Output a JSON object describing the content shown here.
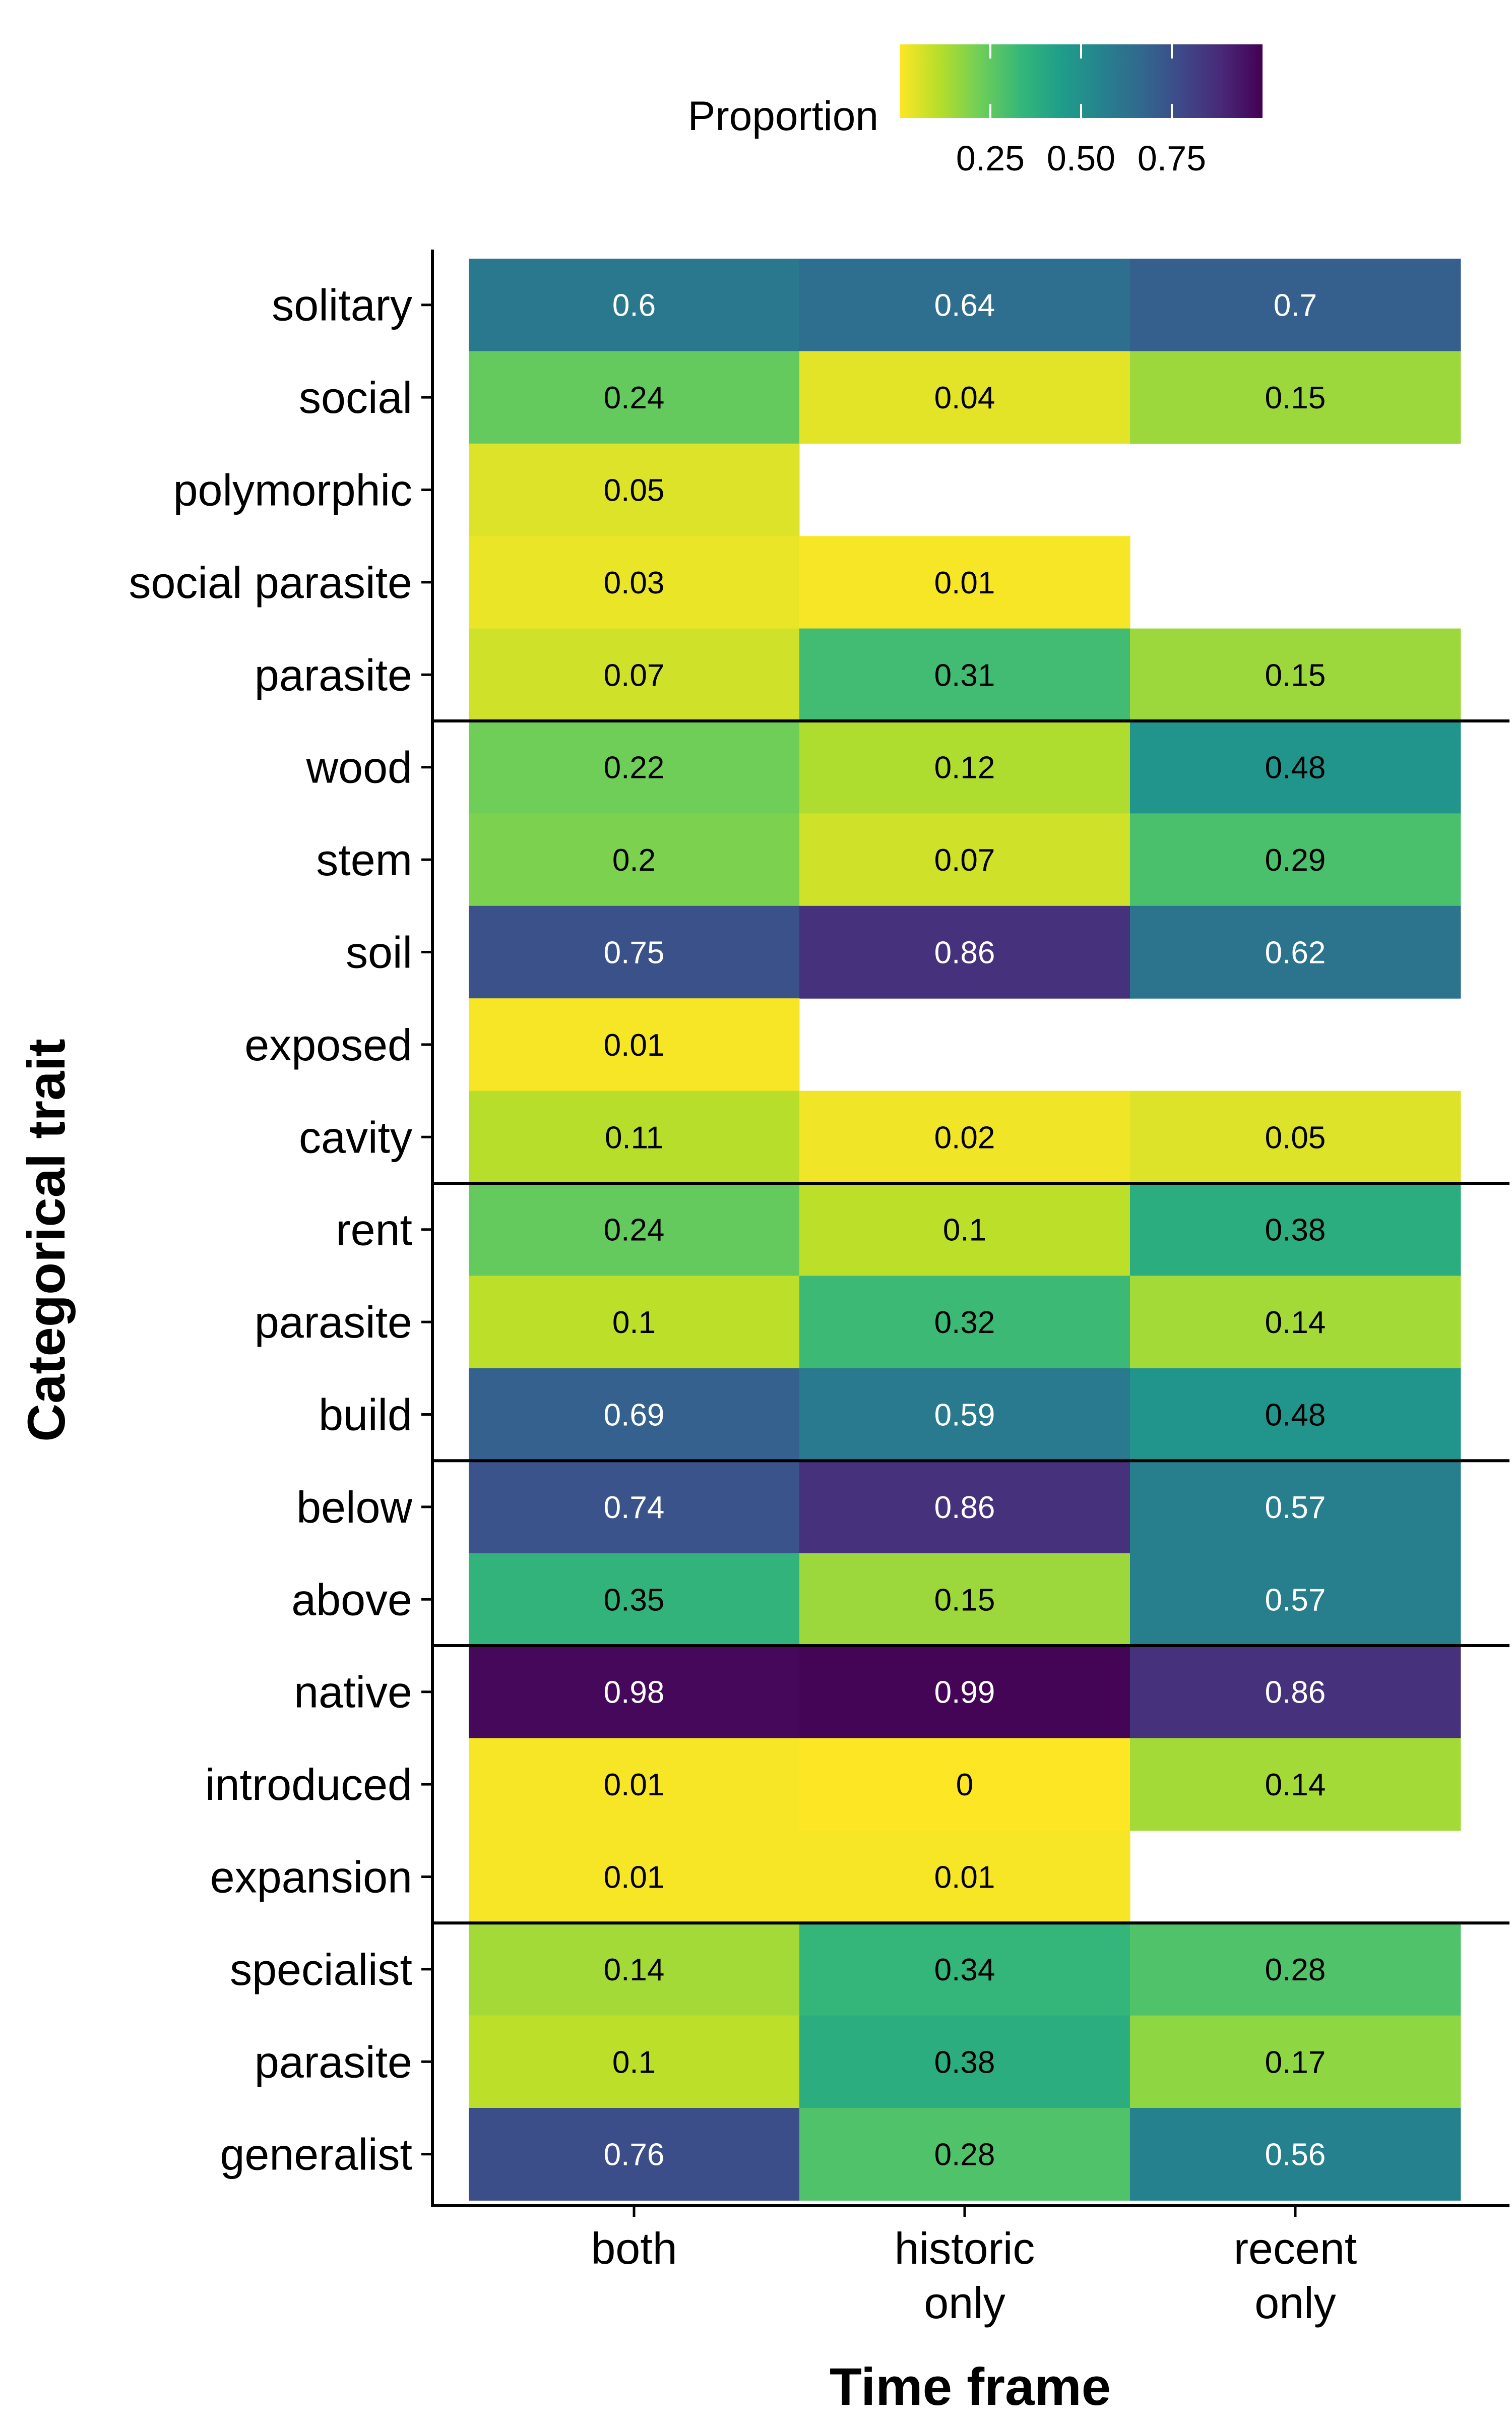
{
  "chart_data": {
    "type": "heatmap",
    "title": "",
    "xlabel": "Time frame",
    "ylabel": "Categorical trait",
    "x_categories": [
      [
        "both"
      ],
      [
        "historic",
        "only"
      ],
      [
        "recent",
        "only"
      ]
    ],
    "y_categories": [
      "solitary",
      "social",
      "polymorphic",
      "social parasite",
      "parasite",
      "wood",
      "stem",
      "soil",
      "exposed",
      "cavity",
      "rent",
      "parasite",
      "build",
      "below",
      "above",
      "native",
      "introduced",
      "expansion",
      "specialist",
      "parasite",
      "generalist"
    ],
    "values": [
      [
        0.6,
        0.64,
        0.7
      ],
      [
        0.24,
        0.04,
        0.15
      ],
      [
        0.05,
        null,
        null
      ],
      [
        0.03,
        0.01,
        null
      ],
      [
        0.07,
        0.31,
        0.15
      ],
      [
        0.22,
        0.12,
        0.48
      ],
      [
        0.2,
        0.07,
        0.29
      ],
      [
        0.75,
        0.86,
        0.62
      ],
      [
        0.01,
        null,
        null
      ],
      [
        0.11,
        0.02,
        0.05
      ],
      [
        0.24,
        0.1,
        0.38
      ],
      [
        0.1,
        0.32,
        0.14
      ],
      [
        0.69,
        0.59,
        0.48
      ],
      [
        0.74,
        0.86,
        0.57
      ],
      [
        0.35,
        0.15,
        0.57
      ],
      [
        0.98,
        0.99,
        0.86
      ],
      [
        0.01,
        0,
        0.14
      ],
      [
        0.01,
        0.01,
        null
      ],
      [
        0.14,
        0.34,
        0.28
      ],
      [
        0.1,
        0.38,
        0.17
      ],
      [
        0.76,
        0.28,
        0.56
      ]
    ],
    "group_separators_after_row": [
      4,
      9,
      12,
      14,
      17
    ],
    "legend": {
      "title": "Proportion",
      "ticks": [
        "0.25",
        "0.50",
        "0.75"
      ],
      "tick_values": [
        0.25,
        0.5,
        0.75
      ],
      "range": [
        0,
        1
      ],
      "placement": "top",
      "palette": "viridis reversed (yellow low, purple high)"
    },
    "colors": {
      "scale": [
        "#FDE725",
        "#B5DE2B",
        "#6ECE58",
        "#35B779",
        "#1F9E89",
        "#26828E",
        "#31688E",
        "#3E4989",
        "#482878",
        "#440154"
      ],
      "text_dark": "#000000",
      "text_light": "#ffffff"
    }
  }
}
